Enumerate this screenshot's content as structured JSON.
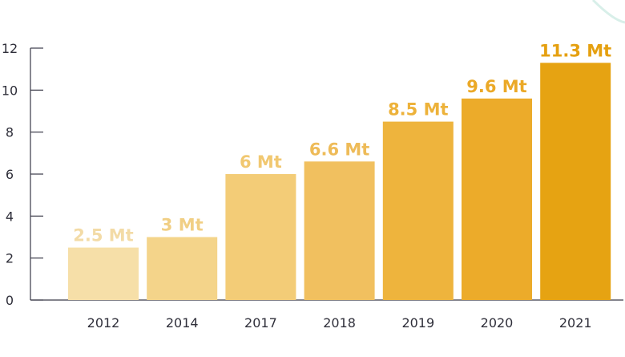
{
  "chart_data": {
    "type": "bar",
    "categories": [
      "2012",
      "2014",
      "2017",
      "2018",
      "2019",
      "2020",
      "2021"
    ],
    "values": [
      2.5,
      3,
      6,
      6.6,
      8.5,
      9.6,
      11.3
    ],
    "data_labels": [
      "2.5 Mt",
      "3 Mt",
      "6 Mt",
      "6.6 Mt",
      "8.5 Mt",
      "9.6 Mt",
      "11.3 Mt"
    ],
    "bar_colors": [
      "#f6dfa8",
      "#f4d48a",
      "#f3cc77",
      "#f1c05f",
      "#eeb43d",
      "#ecab2a",
      "#e6a312"
    ],
    "label_colors": [
      "#f3dba6",
      "#f1cf84",
      "#f1c871",
      "#eebb58",
      "#edb23a",
      "#eba927",
      "#e5a010"
    ],
    "yticks": [
      0,
      2,
      4,
      6,
      8,
      10,
      12
    ],
    "ylim": [
      0,
      12
    ],
    "title": "",
    "xlabel": "",
    "ylabel": "",
    "grid": false,
    "axis_color": "#3a3a48"
  }
}
